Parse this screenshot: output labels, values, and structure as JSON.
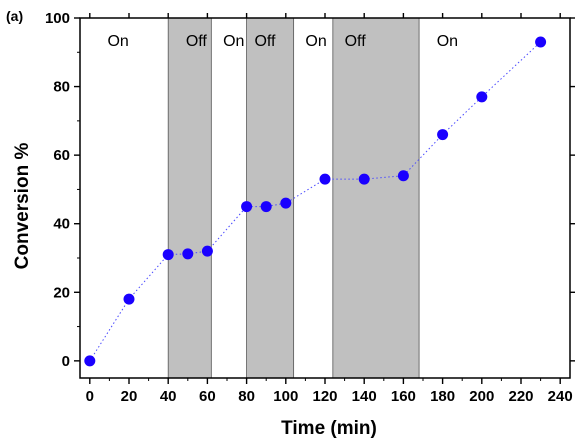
{
  "chart_data": {
    "type": "scatter",
    "panel_label": "(a)",
    "xlabel": "Time (min)",
    "ylabel": "Conversion %",
    "xlim": [
      -5,
      245
    ],
    "ylim": [
      -5,
      100
    ],
    "xticks": [
      0,
      20,
      40,
      60,
      80,
      100,
      120,
      140,
      160,
      180,
      200,
      220,
      240
    ],
    "yticks": [
      0,
      20,
      40,
      60,
      80,
      100
    ],
    "grid": false,
    "legend": "none",
    "series": [
      {
        "x": [
          0,
          20,
          40,
          50,
          60,
          80,
          90,
          100,
          120,
          140,
          160,
          180,
          200,
          230
        ],
        "y": [
          0,
          18,
          31,
          31.2,
          32,
          45,
          45,
          46,
          53,
          53,
          54,
          66,
          77,
          93
        ],
        "color": "#1a00ff",
        "line_style": "dotted"
      }
    ],
    "off_regions": [
      {
        "x0": 40,
        "x1": 62
      },
      {
        "x0": 80,
        "x1": 104
      },
      {
        "x0": 124,
        "x1": 168
      }
    ],
    "region_labels": [
      {
        "text": "On",
        "x": 9
      },
      {
        "text": "Off",
        "x": 49
      },
      {
        "text": "On",
        "x": 68
      },
      {
        "text": "Off",
        "x": 84
      },
      {
        "text": "On",
        "x": 110
      },
      {
        "text": "Off",
        "x": 130
      },
      {
        "text": "On",
        "x": 177
      }
    ],
    "colors": {
      "marker": "#1a00ff",
      "line": "#4a4aff",
      "shade": "#c0c0c0",
      "shade_edge": "#555555"
    }
  }
}
